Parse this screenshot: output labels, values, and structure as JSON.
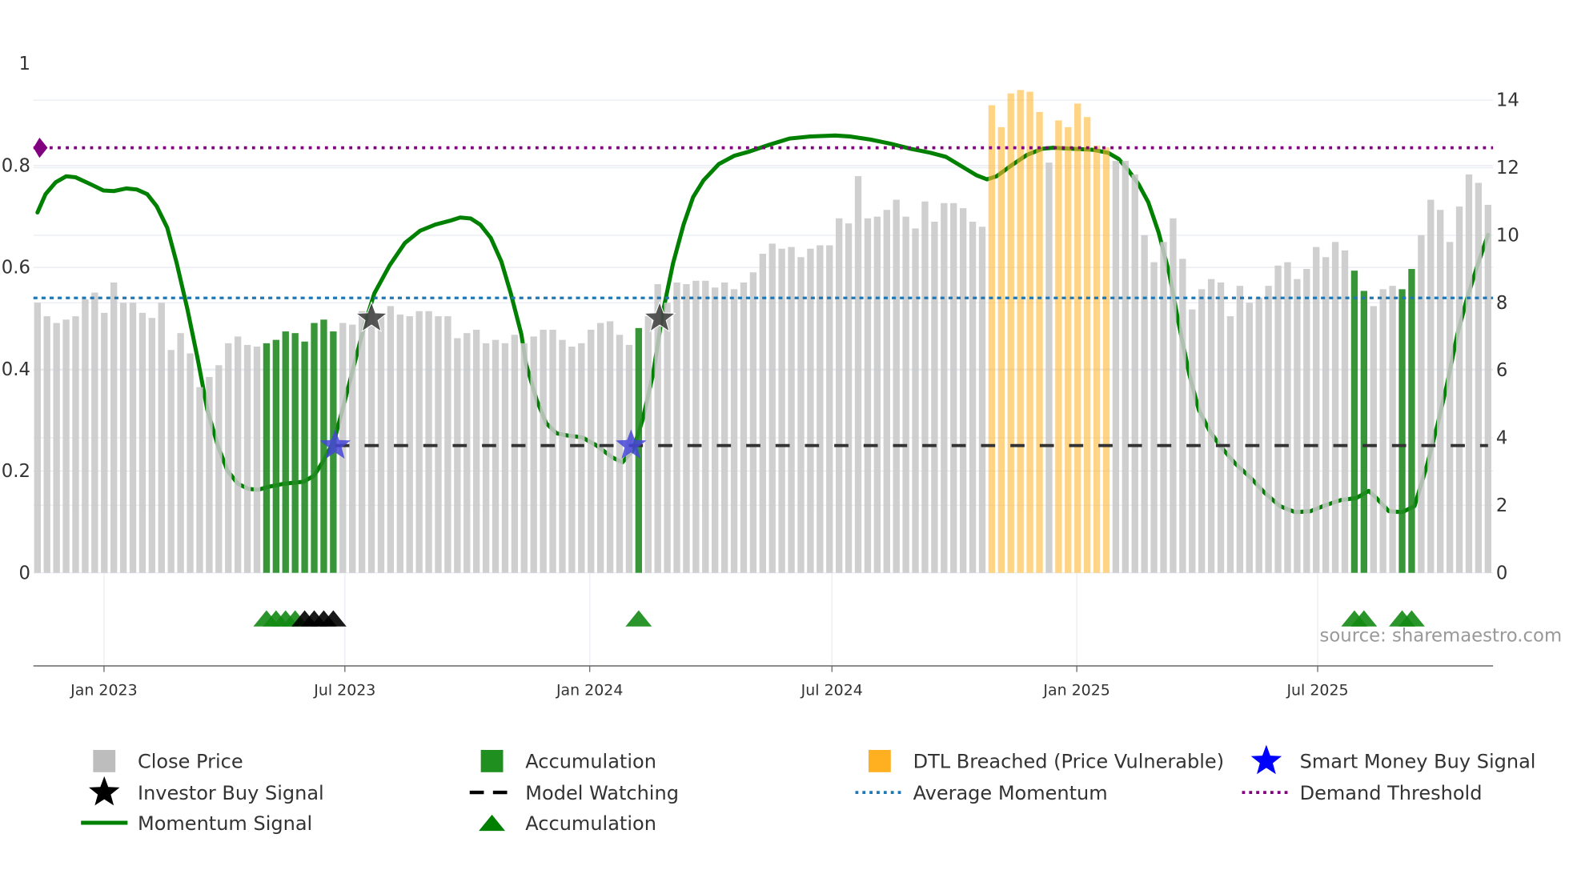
{
  "chart_data": {
    "type": "bar",
    "title": "",
    "x_interval": "weekly",
    "x_start": "2022-11-12",
    "x_end": "2025-11-06",
    "x_ticks": [
      {
        "label": "Jan 2023",
        "date": "2023-01-01"
      },
      {
        "label": "Jul 2023",
        "date": "2023-07-01"
      },
      {
        "label": "Jan 2024",
        "date": "2024-01-01"
      },
      {
        "label": "Jul 2024",
        "date": "2024-07-01"
      },
      {
        "label": "Jan 2025",
        "date": "2025-01-01"
      },
      {
        "label": "Jul 2025",
        "date": "2025-07-01"
      }
    ],
    "y_left": {
      "range": [
        0,
        1
      ],
      "ticks": [
        "0",
        "0.2",
        "0.4",
        "0.6",
        "0.8",
        "1"
      ],
      "tick_values": [
        0,
        0.2,
        0.4,
        0.6,
        0.8,
        1
      ]
    },
    "y_right": {
      "range": [
        0,
        15.08
      ],
      "ticks": [
        "0",
        "2",
        "4",
        "6",
        "8",
        "10",
        "12",
        "14"
      ],
      "tick_values": [
        0,
        2,
        4,
        6,
        8,
        10,
        12,
        14
      ]
    },
    "close_price": [
      8.0,
      7.6,
      7.4,
      7.5,
      7.6,
      8.1,
      8.3,
      7.7,
      8.6,
      8.0,
      8.0,
      7.7,
      7.55,
      8.0,
      6.6,
      7.1,
      6.5,
      5.5,
      5.8,
      6.15,
      6.8,
      7.0,
      6.75,
      6.7,
      6.8,
      6.9,
      7.15,
      7.1,
      6.85,
      7.4,
      7.5,
      7.15,
      7.4,
      7.35,
      7.75,
      7.8,
      7.7,
      7.9,
      7.65,
      7.6,
      7.75,
      7.75,
      7.6,
      7.6,
      6.95,
      7.1,
      7.2,
      6.8,
      6.9,
      6.8,
      7.05,
      6.8,
      7.0,
      7.2,
      7.2,
      6.9,
      6.7,
      6.8,
      7.2,
      7.4,
      7.45,
      7.05,
      6.75,
      7.25,
      7.6,
      8.55,
      8.0,
      8.6,
      8.55,
      8.65,
      8.65,
      8.45,
      8.6,
      8.4,
      8.6,
      8.9,
      9.45,
      9.75,
      9.6,
      9.65,
      9.35,
      9.6,
      9.7,
      9.7,
      10.5,
      10.35,
      11.75,
      10.5,
      10.55,
      10.75,
      11.05,
      10.55,
      10.2,
      11.0,
      10.4,
      10.95,
      10.95,
      10.8,
      10.4,
      10.25,
      13.85,
      13.2,
      14.2,
      14.3,
      14.25,
      13.65,
      12.15,
      13.4,
      13.2,
      13.9,
      13.5,
      12.65,
      12.6,
      12.2,
      12.2,
      11.8,
      10.0,
      9.2,
      9.8,
      10.5,
      9.3,
      7.8,
      8.4,
      8.7,
      8.6,
      7.6,
      8.5,
      8.0,
      8.15,
      8.5,
      9.1,
      9.2,
      8.7,
      9.0,
      9.65,
      9.35,
      9.8,
      9.55,
      8.95,
      8.35,
      7.9,
      8.4,
      8.5,
      8.4,
      9.0,
      10.0,
      11.05,
      10.75,
      9.8,
      10.85,
      11.8,
      11.55,
      10.9
    ],
    "accumulation_bars": [
      24,
      25,
      26,
      27,
      28,
      29,
      30,
      31,
      63,
      138,
      139,
      143,
      144
    ],
    "dtl_breached_bars": [
      100,
      101,
      102,
      103,
      104,
      105,
      107,
      108,
      109,
      110,
      111,
      112
    ],
    "momentum_signal": [
      [
        0,
        0.708
      ],
      [
        0.85,
        0.744
      ],
      [
        1.9,
        0.767
      ],
      [
        3.0,
        0.779
      ],
      [
        4.0,
        0.777
      ],
      [
        5.6,
        0.763
      ],
      [
        6.9,
        0.751
      ],
      [
        8.0,
        0.75
      ],
      [
        9.3,
        0.755
      ],
      [
        10.4,
        0.753
      ],
      [
        11.5,
        0.744
      ],
      [
        12.5,
        0.72
      ],
      [
        13.6,
        0.678
      ],
      [
        14.6,
        0.608
      ],
      [
        15.7,
        0.519
      ],
      [
        16.8,
        0.419
      ],
      [
        17.8,
        0.32
      ],
      [
        18.9,
        0.25
      ],
      [
        19.9,
        0.201
      ],
      [
        21.0,
        0.175
      ],
      [
        22.1,
        0.165
      ],
      [
        23.1,
        0.163
      ],
      [
        24.2,
        0.169
      ],
      [
        25.8,
        0.175
      ],
      [
        27.9,
        0.179
      ],
      [
        29.0,
        0.191
      ],
      [
        30.0,
        0.221
      ],
      [
        31.1,
        0.26
      ],
      [
        32.1,
        0.33
      ],
      [
        33.2,
        0.41
      ],
      [
        34.3,
        0.489
      ],
      [
        35.3,
        0.549
      ],
      [
        36.9,
        0.604
      ],
      [
        38.5,
        0.648
      ],
      [
        40.1,
        0.672
      ],
      [
        41.7,
        0.684
      ],
      [
        43.3,
        0.692
      ],
      [
        44.3,
        0.698
      ],
      [
        45.4,
        0.696
      ],
      [
        46.4,
        0.684
      ],
      [
        47.5,
        0.658
      ],
      [
        48.6,
        0.612
      ],
      [
        49.6,
        0.549
      ],
      [
        50.7,
        0.469
      ],
      [
        51.2,
        0.41
      ],
      [
        52.3,
        0.34
      ],
      [
        53.3,
        0.294
      ],
      [
        54.4,
        0.274
      ],
      [
        55.5,
        0.27
      ],
      [
        57.1,
        0.266
      ],
      [
        58.6,
        0.25
      ],
      [
        60.2,
        0.227
      ],
      [
        61.3,
        0.217
      ],
      [
        62.4,
        0.241
      ],
      [
        63.4,
        0.3
      ],
      [
        64.5,
        0.39
      ],
      [
        65.5,
        0.509
      ],
      [
        66.6,
        0.608
      ],
      [
        67.7,
        0.684
      ],
      [
        68.7,
        0.738
      ],
      [
        69.8,
        0.771
      ],
      [
        71.4,
        0.803
      ],
      [
        73.0,
        0.819
      ],
      [
        74.5,
        0.827
      ],
      [
        76.7,
        0.841
      ],
      [
        78.8,
        0.853
      ],
      [
        80.9,
        0.857
      ],
      [
        83.6,
        0.859
      ],
      [
        85.2,
        0.857
      ],
      [
        87.3,
        0.851
      ],
      [
        89.4,
        0.843
      ],
      [
        91.5,
        0.833
      ],
      [
        93.6,
        0.825
      ],
      [
        95.2,
        0.817
      ],
      [
        96.8,
        0.799
      ],
      [
        98.4,
        0.781
      ],
      [
        99.5,
        0.773
      ],
      [
        100.5,
        0.779
      ],
      [
        102.1,
        0.801
      ],
      [
        103.7,
        0.821
      ],
      [
        105.3,
        0.833
      ],
      [
        106.4,
        0.835
      ],
      [
        108.5,
        0.833
      ],
      [
        110.6,
        0.831
      ],
      [
        112.2,
        0.825
      ],
      [
        113.3,
        0.813
      ],
      [
        114.3,
        0.791
      ],
      [
        115.4,
        0.763
      ],
      [
        116.4,
        0.728
      ],
      [
        117.5,
        0.668
      ],
      [
        118.6,
        0.588
      ],
      [
        119.6,
        0.489
      ],
      [
        120.7,
        0.39
      ],
      [
        121.7,
        0.32
      ],
      [
        122.8,
        0.28
      ],
      [
        123.9,
        0.25
      ],
      [
        125.5,
        0.215
      ],
      [
        127.1,
        0.187
      ],
      [
        128.6,
        0.157
      ],
      [
        130.2,
        0.131
      ],
      [
        131.8,
        0.119
      ],
      [
        133.4,
        0.121
      ],
      [
        135.0,
        0.133
      ],
      [
        136.6,
        0.143
      ],
      [
        138.2,
        0.147
      ],
      [
        139.5,
        0.161
      ],
      [
        140.3,
        0.147
      ],
      [
        141.6,
        0.121
      ],
      [
        143.0,
        0.119
      ],
      [
        144.3,
        0.131
      ],
      [
        145.6,
        0.211
      ],
      [
        146.7,
        0.29
      ],
      [
        147.7,
        0.37
      ],
      [
        148.8,
        0.469
      ],
      [
        149.8,
        0.539
      ],
      [
        150.9,
        0.604
      ],
      [
        152,
        0.664
      ]
    ],
    "smart_money_buy_signals": [
      [
        31.2,
        0.25
      ],
      [
        62.2,
        0.25
      ]
    ],
    "investor_buy_signals": [
      [
        35.0,
        0.5
      ],
      [
        65.2,
        0.5
      ]
    ],
    "model_watching": {
      "value": 0.25,
      "from_index": 31.2,
      "to_index": 152
    },
    "average_momentum": 0.54,
    "demand_threshold": 0.835,
    "accumulation_markers": [
      {
        "index": 24,
        "color": "green"
      },
      {
        "index": 25,
        "color": "green"
      },
      {
        "index": 26,
        "color": "green"
      },
      {
        "index": 27,
        "color": "green"
      },
      {
        "index": 28,
        "color": "black"
      },
      {
        "index": 29,
        "color": "black"
      },
      {
        "index": 30,
        "color": "black"
      },
      {
        "index": 31,
        "color": "black"
      },
      {
        "index": 63,
        "color": "green"
      },
      {
        "index": 138,
        "color": "green"
      },
      {
        "index": 139,
        "color": "green"
      },
      {
        "index": 143,
        "color": "green"
      },
      {
        "index": 144,
        "color": "green"
      }
    ],
    "colors": {
      "close_price": "#c8c8c8",
      "accumulation": "#228B22",
      "dtl": "#ffb733",
      "momentum": "#008000",
      "smart_money": "#0000ff",
      "investor": "#000000",
      "model_watching": "#000000",
      "average_momentum": "#1f77b4",
      "demand_threshold": "#800080"
    },
    "legend": [
      {
        "label": "Close Price",
        "symbol": "square",
        "color": "#bdbdbd"
      },
      {
        "label": "Accumulation",
        "symbol": "square",
        "color": "#1f8f1f"
      },
      {
        "label": "DTL Breached (Price Vulnerable)",
        "symbol": "square",
        "color": "#ffb020"
      },
      {
        "label": "Smart Money Buy Signal",
        "symbol": "star",
        "color": "#0000ff"
      },
      {
        "label": "Investor Buy Signal",
        "symbol": "star",
        "color": "#000000"
      },
      {
        "label": "Model Watching",
        "symbol": "dash",
        "color": "#000000"
      },
      {
        "label": "Average Momentum",
        "symbol": "dot",
        "color": "#1f77b4"
      },
      {
        "label": "Demand Threshold",
        "symbol": "dot",
        "color": "#800080"
      },
      {
        "label": "Momentum Signal",
        "symbol": "line",
        "color": "#008000"
      },
      {
        "label": "Accumulation",
        "symbol": "triangle",
        "color": "#008000"
      }
    ],
    "legend_placement": "bottom",
    "annotation": "source: sharemaestro.com"
  }
}
